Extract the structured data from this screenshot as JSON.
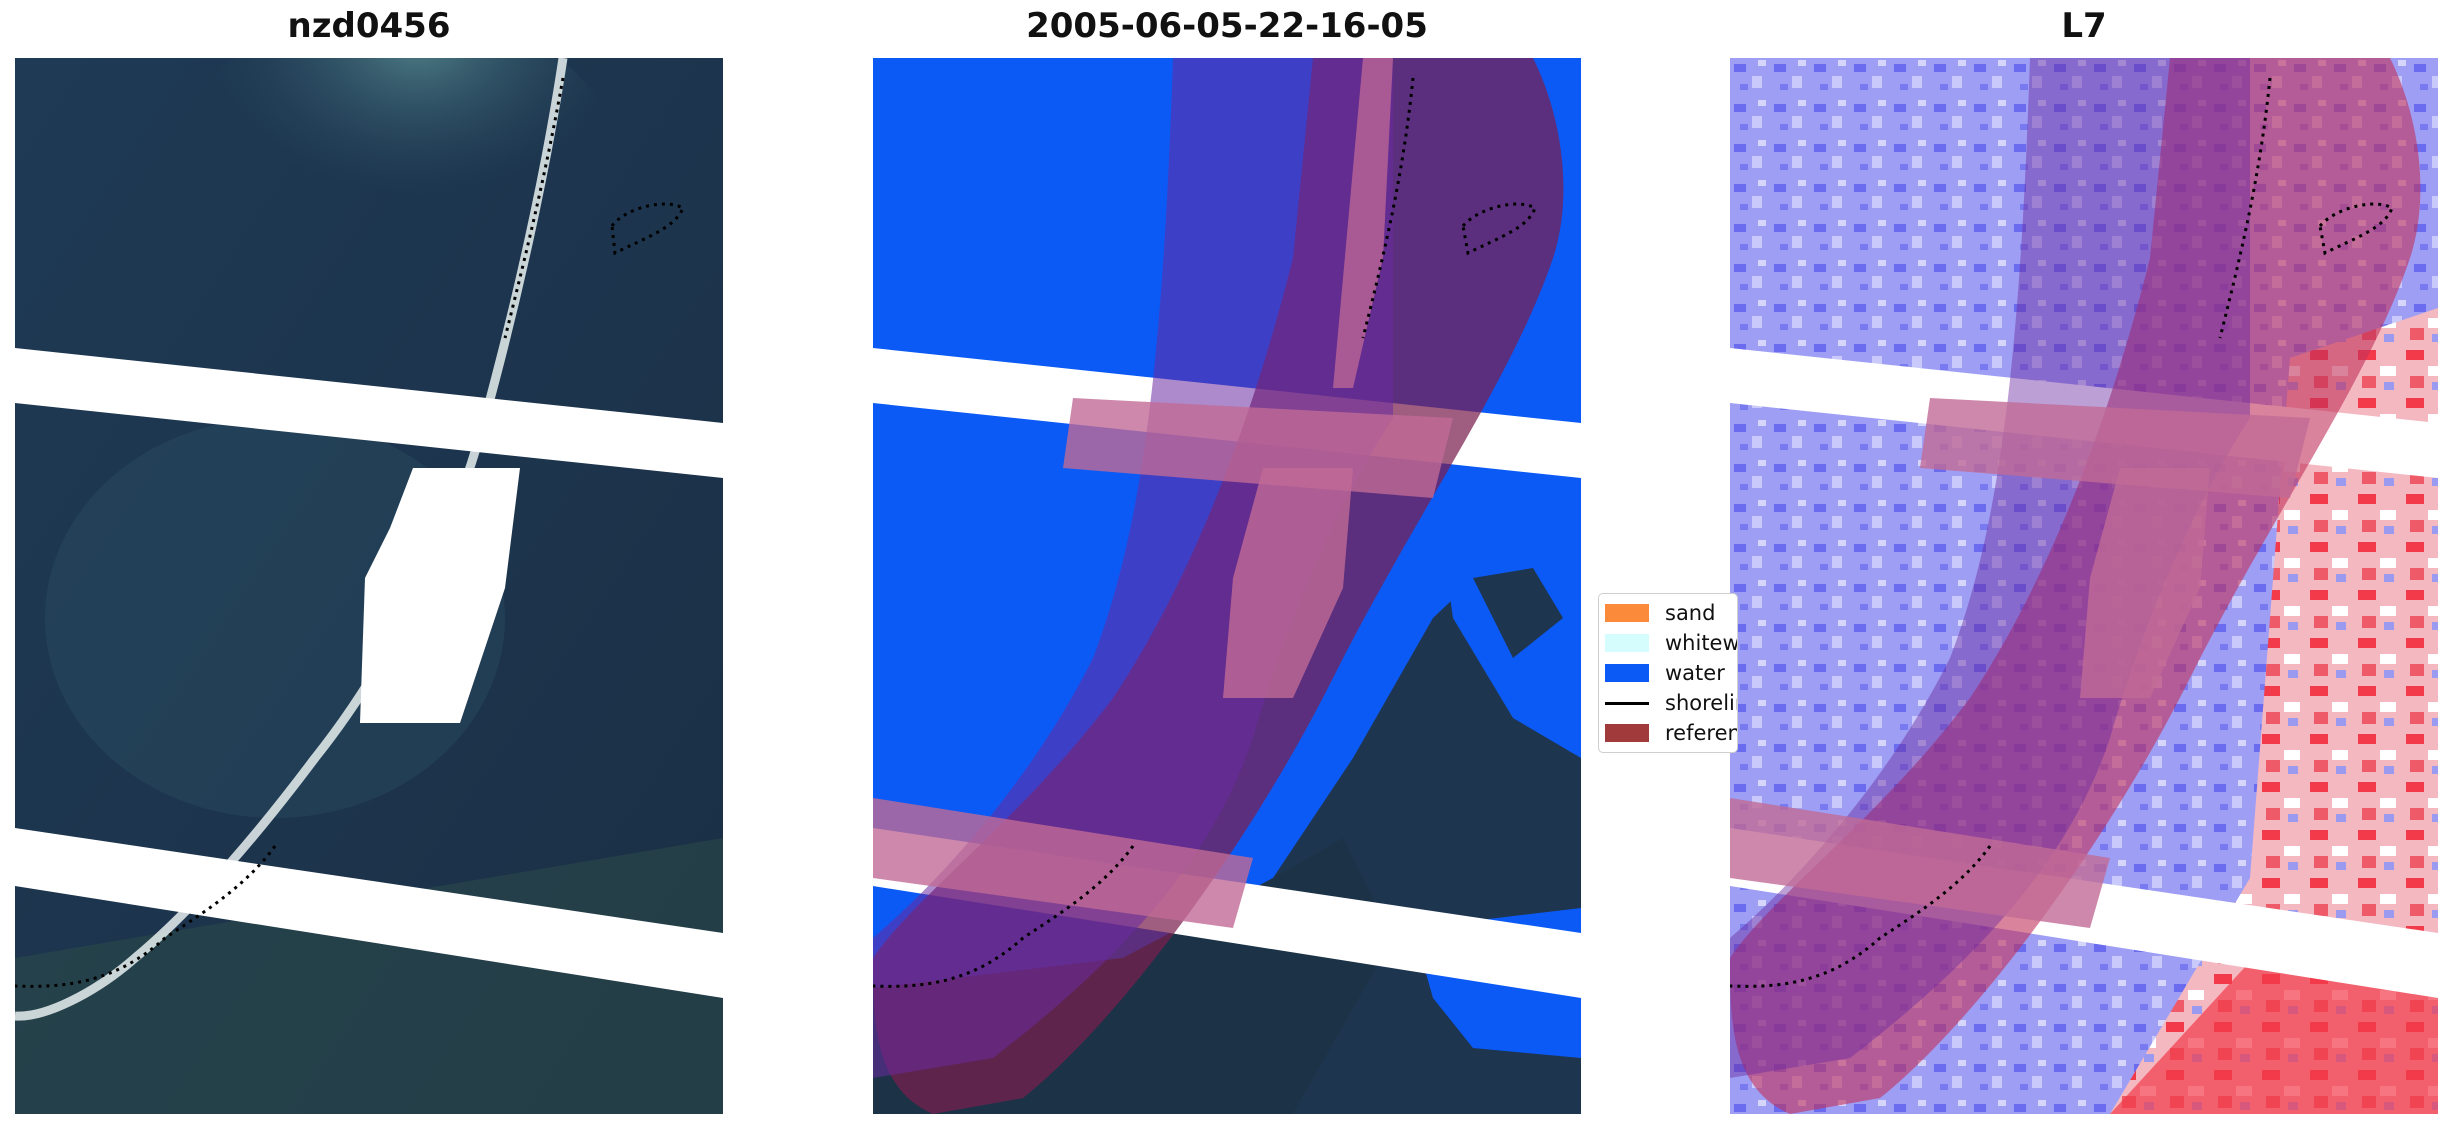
{
  "panels": [
    {
      "title": "nzd0456"
    },
    {
      "title": "2005-06-05-22-16-05"
    },
    {
      "title": "L7"
    }
  ],
  "legend": {
    "items": [
      {
        "label": "sand",
        "color": "#fb8b3a",
        "kind": "patch"
      },
      {
        "label": "whitewater",
        "color": "#d6fdfd",
        "kind": "patch"
      },
      {
        "label": "water",
        "color": "#0b5af5",
        "kind": "patch"
      },
      {
        "label": "shoreline",
        "color": "#000000",
        "kind": "line"
      },
      {
        "label": "reference",
        "color": "#a13a3a",
        "kind": "patch"
      }
    ]
  },
  "colors": {
    "ocean_dark": "#1e3550",
    "water_class": "#0b5af5",
    "buffer": "#7a1f4f",
    "buffer_light": "#c06a96",
    "index_blue": "#8f8ff2",
    "index_red": "#f23a4a"
  }
}
